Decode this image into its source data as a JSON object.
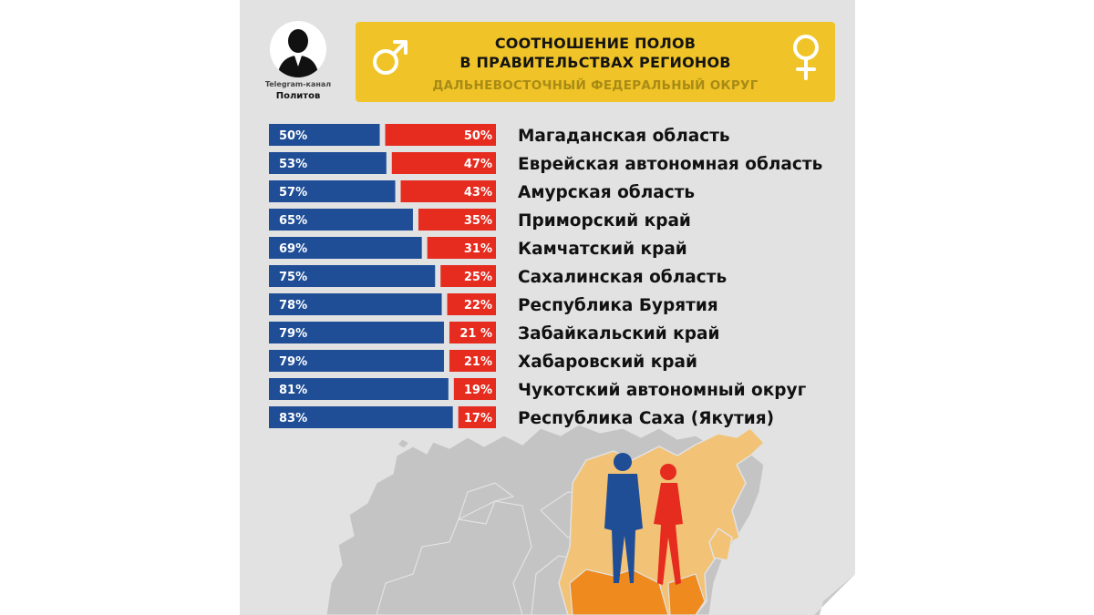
{
  "channel": {
    "line1": "Telegram-канал",
    "line2": "Политов"
  },
  "header": {
    "title_line1": "СООТНОШЕНИЕ ПОЛОВ",
    "title_line2": "В ПРАВИТЕЛЬСТВАХ РЕГИОНОВ",
    "subtitle": "ДАЛЬНЕВОСТОЧНЫЙ ФЕДЕРАЛЬНЫЙ ОКРУГ"
  },
  "colors": {
    "male": "#1f4e97",
    "female": "#e62b1f",
    "header_bg": "#f0c428",
    "background": "#e2e2e2",
    "map_gray": "#c4c4c4",
    "map_highlight": "#f2c276"
  },
  "chart_data": {
    "type": "bar",
    "stacked": true,
    "orientation": "horizontal",
    "categories": [
      "Магаданская область",
      "Еврейская автономная область",
      "Амурская область",
      "Приморский край",
      "Камчатский край",
      "Сахалинская область",
      "Республика Бурятия",
      "Забайкальский край",
      "Хабаровский край",
      "Чукотский автономный округ",
      "Республика Саха (Якутия)"
    ],
    "series": [
      {
        "values": [
          50,
          53,
          57,
          65,
          69,
          75,
          78,
          79,
          79,
          81,
          83
        ],
        "labels": [
          "50%",
          "53%",
          "57%",
          "65%",
          "69%",
          "75%",
          "78%",
          "79%",
          "79%",
          "81%",
          "83%"
        ]
      },
      {
        "values": [
          50,
          47,
          43,
          35,
          31,
          25,
          22,
          21,
          21,
          19,
          17
        ],
        "labels": [
          "50%",
          "47%",
          "43%",
          "35%",
          "31%",
          "25%",
          "22%",
          "21 %",
          "21%",
          "19%",
          "17%"
        ]
      }
    ],
    "xlim": [
      0,
      100
    ]
  }
}
